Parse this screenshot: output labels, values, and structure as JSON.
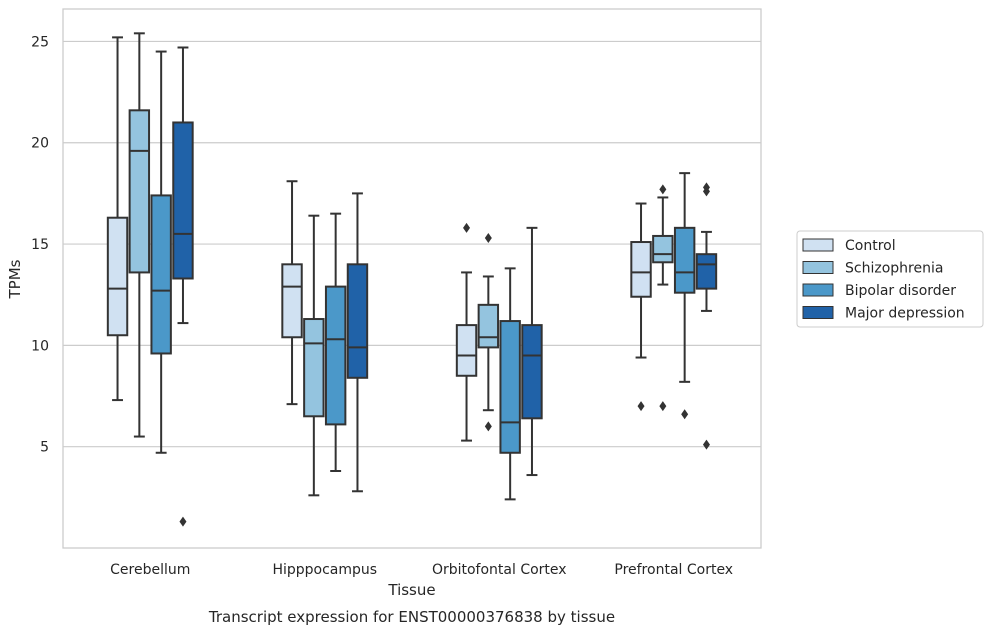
{
  "chart_data": {
    "type": "box",
    "title": "",
    "xlabel": "Tissue",
    "ylabel": "TPMs",
    "caption": "Transcript expression for ENST00000376838 by tissue",
    "categories": [
      "Cerebellum",
      "Hipppocampus",
      "Orbitofontal Cortex",
      "Prefrontal Cortex"
    ],
    "ylim": [
      0,
      26.6
    ],
    "yticks": [
      5,
      10,
      15,
      20,
      25
    ],
    "grid": "horizontal",
    "legend_position": "right",
    "series": [
      {
        "name": "Control",
        "color": "#d0e1f2",
        "boxes": [
          {
            "whisker_low": 7.3,
            "q1": 10.5,
            "median": 12.8,
            "q3": 16.3,
            "whisker_high": 25.2,
            "outliers": []
          },
          {
            "whisker_low": 7.1,
            "q1": 10.4,
            "median": 12.9,
            "q3": 14.0,
            "whisker_high": 18.1,
            "outliers": []
          },
          {
            "whisker_low": 5.3,
            "q1": 8.5,
            "median": 9.5,
            "q3": 11.0,
            "whisker_high": 13.6,
            "outliers": [
              15.8
            ]
          },
          {
            "whisker_low": 9.4,
            "q1": 12.4,
            "median": 13.6,
            "q3": 15.1,
            "whisker_high": 17.0,
            "outliers": [
              7.0
            ]
          }
        ]
      },
      {
        "name": "Schizophrenia",
        "color": "#94c4df",
        "boxes": [
          {
            "whisker_low": 5.5,
            "q1": 13.6,
            "median": 19.6,
            "q3": 21.6,
            "whisker_high": 25.4,
            "outliers": []
          },
          {
            "whisker_low": 2.6,
            "q1": 6.5,
            "median": 10.1,
            "q3": 11.3,
            "whisker_high": 16.4,
            "outliers": []
          },
          {
            "whisker_low": 6.8,
            "q1": 9.9,
            "median": 10.4,
            "q3": 12.0,
            "whisker_high": 13.4,
            "outliers": [
              6.0,
              15.3
            ]
          },
          {
            "whisker_low": 13.0,
            "q1": 14.1,
            "median": 14.5,
            "q3": 15.4,
            "whisker_high": 17.3,
            "outliers": [
              7.0,
              17.7
            ]
          }
        ]
      },
      {
        "name": "Bipolar disorder",
        "color": "#4b98c9",
        "boxes": [
          {
            "whisker_low": 4.7,
            "q1": 9.6,
            "median": 12.7,
            "q3": 17.4,
            "whisker_high": 24.5,
            "outliers": []
          },
          {
            "whisker_low": 3.8,
            "q1": 6.1,
            "median": 10.3,
            "q3": 12.9,
            "whisker_high": 16.5,
            "outliers": []
          },
          {
            "whisker_low": 2.4,
            "q1": 4.7,
            "median": 6.2,
            "q3": 11.2,
            "whisker_high": 13.8,
            "outliers": []
          },
          {
            "whisker_low": 8.2,
            "q1": 12.6,
            "median": 13.6,
            "q3": 15.8,
            "whisker_high": 18.5,
            "outliers": [
              6.6
            ]
          }
        ]
      },
      {
        "name": "Major depression",
        "color": "#2062a8",
        "boxes": [
          {
            "whisker_low": 11.1,
            "q1": 13.3,
            "median": 15.5,
            "q3": 21.0,
            "whisker_high": 24.7,
            "outliers": [
              1.3
            ]
          },
          {
            "whisker_low": 2.8,
            "q1": 8.4,
            "median": 9.9,
            "q3": 14.0,
            "whisker_high": 17.5,
            "outliers": []
          },
          {
            "whisker_low": 3.6,
            "q1": 6.4,
            "median": 9.5,
            "q3": 11.0,
            "whisker_high": 15.8,
            "outliers": []
          },
          {
            "whisker_low": 11.7,
            "q1": 12.8,
            "median": 14.0,
            "q3": 14.5,
            "whisker_high": 15.6,
            "outliers": [
              5.1,
              17.6,
              17.8
            ]
          }
        ]
      }
    ]
  }
}
